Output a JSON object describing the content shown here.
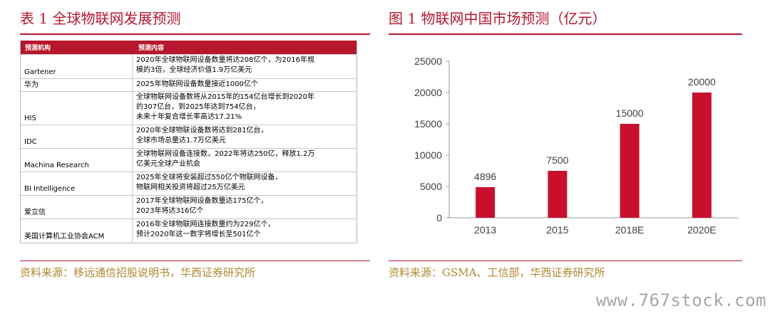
{
  "left": {
    "title": "表 1  全球物联网发展预测",
    "source": "资料来源：移远通信招股说明书，华西证券研究所",
    "table": {
      "headers": [
        "预测机构",
        "预测内容"
      ],
      "rows": [
        {
          "org": "Gartener",
          "lines": [
            "2020年全球物联网设备数量将达208亿个，为2016年规",
            "模的3倍，全球经济价值1.9万亿美元"
          ]
        },
        {
          "org": "华为",
          "lines": [
            "2025年物联网设备数量接近1000亿个"
          ]
        },
        {
          "org": "HIS",
          "lines": [
            "全球物联网设备数将从2015年的154亿台增长到2020年",
            "的307亿台，到2025年达到754亿台，",
            "未来十年复合增长率高达17.21%"
          ]
        },
        {
          "org": "IDC",
          "lines": [
            "2020年全球物联设备数将达到281亿台，",
            "全球市场总量达1.7万亿美元"
          ]
        },
        {
          "org": "Machina Research",
          "lines": [
            "全球物联网设备连接数，2022年将达250亿，释放1.2万",
            "亿美元全球产业机会"
          ]
        },
        {
          "org": "BI Intelligence",
          "lines": [
            "2025年全球将安装超过550亿个物联网设备，",
            "物联网相关投资将超过25万亿美元"
          ]
        },
        {
          "org": "爱立信",
          "lines": [
            "2017年全球物联网设备数量达175亿个，",
            "2023年将达316亿个"
          ]
        },
        {
          "org": "美国计算机工业协会ACM",
          "lines": [
            "2016年全球物联网连接数量约为229亿个，",
            "预计2020年这一数字将增长至501亿个"
          ]
        }
      ]
    }
  },
  "right": {
    "title": "图 1  物联网中国市场预测（亿元）",
    "source": "资料来源：GSMA、工信部，华西证券研究所"
  },
  "watermark": "www.767stock.com",
  "colors": {
    "accent": "#b6172c",
    "bar": "#c8102e",
    "source": "#b0862e"
  },
  "chart_data": {
    "type": "bar",
    "title": "物联网中国市场预测（亿元）",
    "categories": [
      "2013",
      "2015",
      "2018E",
      "2020E"
    ],
    "values": [
      4896,
      7500,
      15000,
      20000
    ],
    "data_labels": [
      "4896",
      "7500",
      "15000",
      "20000"
    ],
    "ylim": [
      0,
      25000
    ],
    "yticks": [
      0,
      5000,
      10000,
      15000,
      20000,
      25000
    ],
    "grid": false,
    "legend": "none"
  }
}
